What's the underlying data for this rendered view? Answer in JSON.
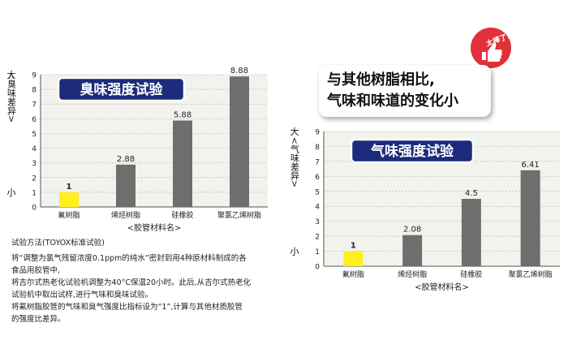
{
  "headline": {
    "line1": "与其他树脂相比,",
    "line2": "气味和味道的变化小"
  },
  "badge": {
    "text": "太棒了!",
    "icon": "thumbs-up-icon",
    "color": "#e2303a"
  },
  "description": {
    "title": "试验方法(TOYOX标准试验)",
    "lines": [
      "将“调整为氯气残留浓度0.1ppm的纯水”密封到用4种原材料制成的各",
      "食品用胶管中,",
      "将吉尔式热老化试验机调整为40°C保温20小时。此后,从吉尔式热老化",
      "试验机中取出试样,进行气味和臭味试验。",
      "将氟树脂胶管的气味和臭气强度比指标设为“1”,计算与其他材质胶管",
      "的强度比差异。"
    ]
  },
  "colors": {
    "title_bg": "#1c2b7c",
    "bar_gray": "#6e6e6e",
    "bar_highlight": "#ffef1f",
    "plot_bg": "#f1f3ec"
  },
  "chart_data": [
    {
      "type": "bar",
      "title": "臭味强度试验",
      "categories": [
        "氟树脂",
        "烯烃树脂",
        "硅橡胶",
        "聚氯乙烯树脂"
      ],
      "values": [
        1,
        2.88,
        5.88,
        8.88
      ],
      "value_labels": [
        "1",
        "2.88",
        "5.88",
        "8.88"
      ],
      "highlight_index": 0,
      "xlabel": "<胶管材料名>",
      "ylabel_top": "大",
      "ylabel_bottom": "小",
      "ylabel_mid": "<臭味差异>",
      "yticks": [
        "0",
        "1",
        "2",
        "3",
        "4",
        "5",
        "6",
        "7",
        "8",
        "9"
      ],
      "ylim": [
        0,
        9
      ],
      "grid": true
    },
    {
      "type": "bar",
      "title": "气味强度试验",
      "categories": [
        "氟树脂",
        "烯烃树脂",
        "硅橡胶",
        "聚氯乙烯树脂"
      ],
      "values": [
        1,
        2.08,
        4.5,
        6.41
      ],
      "value_labels": [
        "1",
        "2.08",
        "4.5",
        "6.41"
      ],
      "highlight_index": 0,
      "xlabel": "<胶管材料名>",
      "ylabel_top": "大",
      "ylabel_bottom": "小",
      "ylabel_mid": "<气味差异>",
      "yticks": [
        "0",
        "1",
        "2",
        "3",
        "4",
        "5",
        "6",
        "7",
        "8",
        "9"
      ],
      "ylim": [
        0,
        9
      ],
      "grid": true
    }
  ]
}
